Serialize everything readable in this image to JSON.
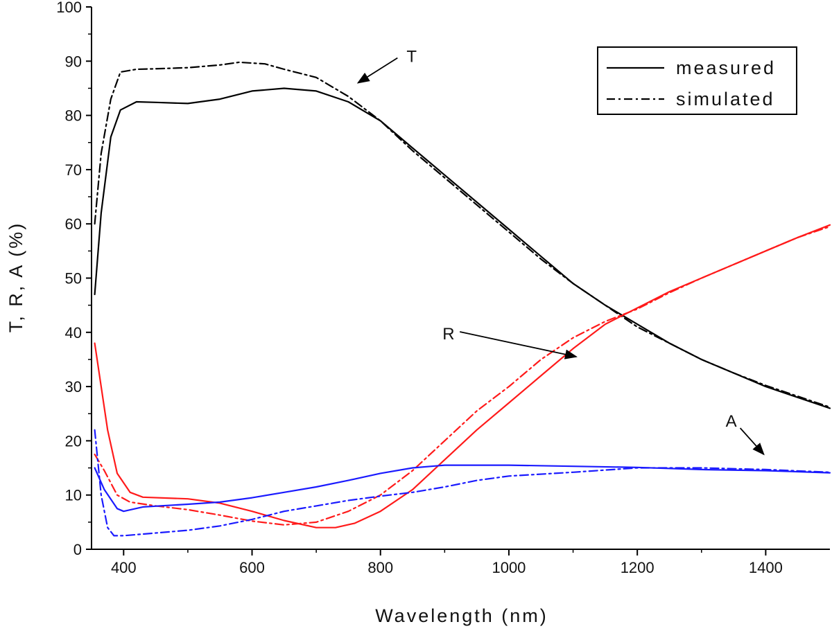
{
  "chart_data": {
    "type": "line",
    "title": "",
    "xlabel": "Wavelength (nm)",
    "ylabel": "T, R, A (%)",
    "xlim": [
      350,
      1500
    ],
    "ylim": [
      0,
      100
    ],
    "x_ticks": [
      400,
      600,
      800,
      1000,
      1200,
      1400
    ],
    "y_ticks": [
      0,
      10,
      20,
      30,
      40,
      50,
      60,
      70,
      80,
      90,
      100
    ],
    "legend": {
      "position": "top-right",
      "entries": [
        {
          "label": "measured",
          "style": "solid"
        },
        {
          "label": "simulated",
          "style": "dash-dot"
        }
      ]
    },
    "colors": {
      "T": "#000000",
      "R": "#ff1a1a",
      "A": "#1a1aff"
    },
    "series": [
      {
        "name": "T measured",
        "quantity": "T",
        "style": "solid",
        "points": [
          [
            355,
            47
          ],
          [
            365,
            62
          ],
          [
            380,
            76
          ],
          [
            395,
            81
          ],
          [
            420,
            82.5
          ],
          [
            450,
            82.4
          ],
          [
            500,
            82.2
          ],
          [
            550,
            83
          ],
          [
            600,
            84.5
          ],
          [
            650,
            85
          ],
          [
            700,
            84.5
          ],
          [
            750,
            82.5
          ],
          [
            800,
            79
          ],
          [
            850,
            74
          ],
          [
            900,
            69
          ],
          [
            950,
            64
          ],
          [
            1000,
            59
          ],
          [
            1050,
            54
          ],
          [
            1100,
            49
          ],
          [
            1150,
            45
          ],
          [
            1200,
            41.5
          ],
          [
            1250,
            38
          ],
          [
            1300,
            35
          ],
          [
            1350,
            32.5
          ],
          [
            1400,
            30
          ],
          [
            1450,
            28
          ],
          [
            1500,
            26
          ]
        ]
      },
      {
        "name": "T simulated",
        "quantity": "T",
        "style": "dash-dot",
        "points": [
          [
            355,
            60
          ],
          [
            365,
            73
          ],
          [
            380,
            83
          ],
          [
            395,
            88
          ],
          [
            420,
            88.5
          ],
          [
            450,
            88.6
          ],
          [
            500,
            88.8
          ],
          [
            550,
            89.3
          ],
          [
            580,
            89.8
          ],
          [
            620,
            89.5
          ],
          [
            650,
            88.5
          ],
          [
            700,
            87
          ],
          [
            750,
            83.5
          ],
          [
            800,
            79
          ],
          [
            850,
            73.5
          ],
          [
            900,
            68.5
          ],
          [
            950,
            63.5
          ],
          [
            1000,
            58.5
          ],
          [
            1050,
            53.5
          ],
          [
            1100,
            49
          ],
          [
            1150,
            45
          ],
          [
            1200,
            41
          ],
          [
            1250,
            38
          ],
          [
            1300,
            35
          ],
          [
            1350,
            32.5
          ],
          [
            1400,
            30.2
          ],
          [
            1450,
            28.2
          ],
          [
            1500,
            26.2
          ]
        ]
      },
      {
        "name": "R measured",
        "quantity": "R",
        "style": "solid",
        "points": [
          [
            355,
            38
          ],
          [
            365,
            30
          ],
          [
            375,
            22
          ],
          [
            390,
            14
          ],
          [
            410,
            10.5
          ],
          [
            430,
            9.6
          ],
          [
            500,
            9.3
          ],
          [
            550,
            8.5
          ],
          [
            600,
            7
          ],
          [
            650,
            5.3
          ],
          [
            700,
            4
          ],
          [
            730,
            4
          ],
          [
            760,
            4.8
          ],
          [
            800,
            7
          ],
          [
            850,
            11
          ],
          [
            900,
            16.5
          ],
          [
            950,
            22
          ],
          [
            1000,
            27
          ],
          [
            1050,
            32
          ],
          [
            1100,
            37
          ],
          [
            1150,
            41.5
          ],
          [
            1200,
            44.5
          ],
          [
            1250,
            47.5
          ],
          [
            1300,
            50
          ],
          [
            1350,
            52.5
          ],
          [
            1400,
            55
          ],
          [
            1450,
            57.5
          ],
          [
            1500,
            59.8
          ]
        ]
      },
      {
        "name": "R simulated",
        "quantity": "R",
        "style": "dash-dot",
        "points": [
          [
            355,
            17.5
          ],
          [
            370,
            14.5
          ],
          [
            390,
            10
          ],
          [
            410,
            8.7
          ],
          [
            450,
            8
          ],
          [
            500,
            7.3
          ],
          [
            550,
            6.3
          ],
          [
            600,
            5.2
          ],
          [
            650,
            4.5
          ],
          [
            700,
            5
          ],
          [
            750,
            7
          ],
          [
            800,
            10
          ],
          [
            850,
            14.5
          ],
          [
            900,
            20
          ],
          [
            950,
            25.5
          ],
          [
            1000,
            30
          ],
          [
            1050,
            35
          ],
          [
            1100,
            39
          ],
          [
            1150,
            42
          ],
          [
            1200,
            44.3
          ],
          [
            1250,
            47.3
          ],
          [
            1300,
            50
          ],
          [
            1350,
            52.5
          ],
          [
            1400,
            55
          ],
          [
            1450,
            57.5
          ],
          [
            1500,
            59.5
          ]
        ]
      },
      {
        "name": "A measured",
        "quantity": "A",
        "style": "solid",
        "points": [
          [
            355,
            15
          ],
          [
            370,
            11
          ],
          [
            390,
            7.5
          ],
          [
            400,
            7
          ],
          [
            430,
            7.8
          ],
          [
            500,
            8.3
          ],
          [
            550,
            8.7
          ],
          [
            600,
            9.5
          ],
          [
            650,
            10.5
          ],
          [
            700,
            11.5
          ],
          [
            750,
            12.7
          ],
          [
            800,
            14
          ],
          [
            850,
            15
          ],
          [
            900,
            15.5
          ],
          [
            1000,
            15.5
          ],
          [
            1100,
            15.3
          ],
          [
            1200,
            15.1
          ],
          [
            1300,
            14.7
          ],
          [
            1400,
            14.5
          ],
          [
            1500,
            14.1
          ]
        ]
      },
      {
        "name": "A simulated",
        "quantity": "A",
        "style": "dash-dot",
        "points": [
          [
            355,
            22
          ],
          [
            365,
            10
          ],
          [
            375,
            4
          ],
          [
            385,
            2.5
          ],
          [
            400,
            2.5
          ],
          [
            450,
            3
          ],
          [
            500,
            3.5
          ],
          [
            550,
            4.3
          ],
          [
            600,
            5.5
          ],
          [
            650,
            7
          ],
          [
            700,
            8
          ],
          [
            750,
            9
          ],
          [
            800,
            9.8
          ],
          [
            850,
            10.5
          ],
          [
            900,
            11.5
          ],
          [
            950,
            12.7
          ],
          [
            1000,
            13.5
          ],
          [
            1100,
            14.2
          ],
          [
            1200,
            15
          ],
          [
            1300,
            15
          ],
          [
            1400,
            14.7
          ],
          [
            1500,
            14.2
          ]
        ]
      }
    ],
    "annotations": [
      {
        "text": "T",
        "points_to": [
          765,
          86
        ]
      },
      {
        "text": "R",
        "points_to": [
          1105,
          35.5
        ]
      },
      {
        "text": "A",
        "points_to": [
          1397,
          17.5
        ]
      }
    ]
  }
}
